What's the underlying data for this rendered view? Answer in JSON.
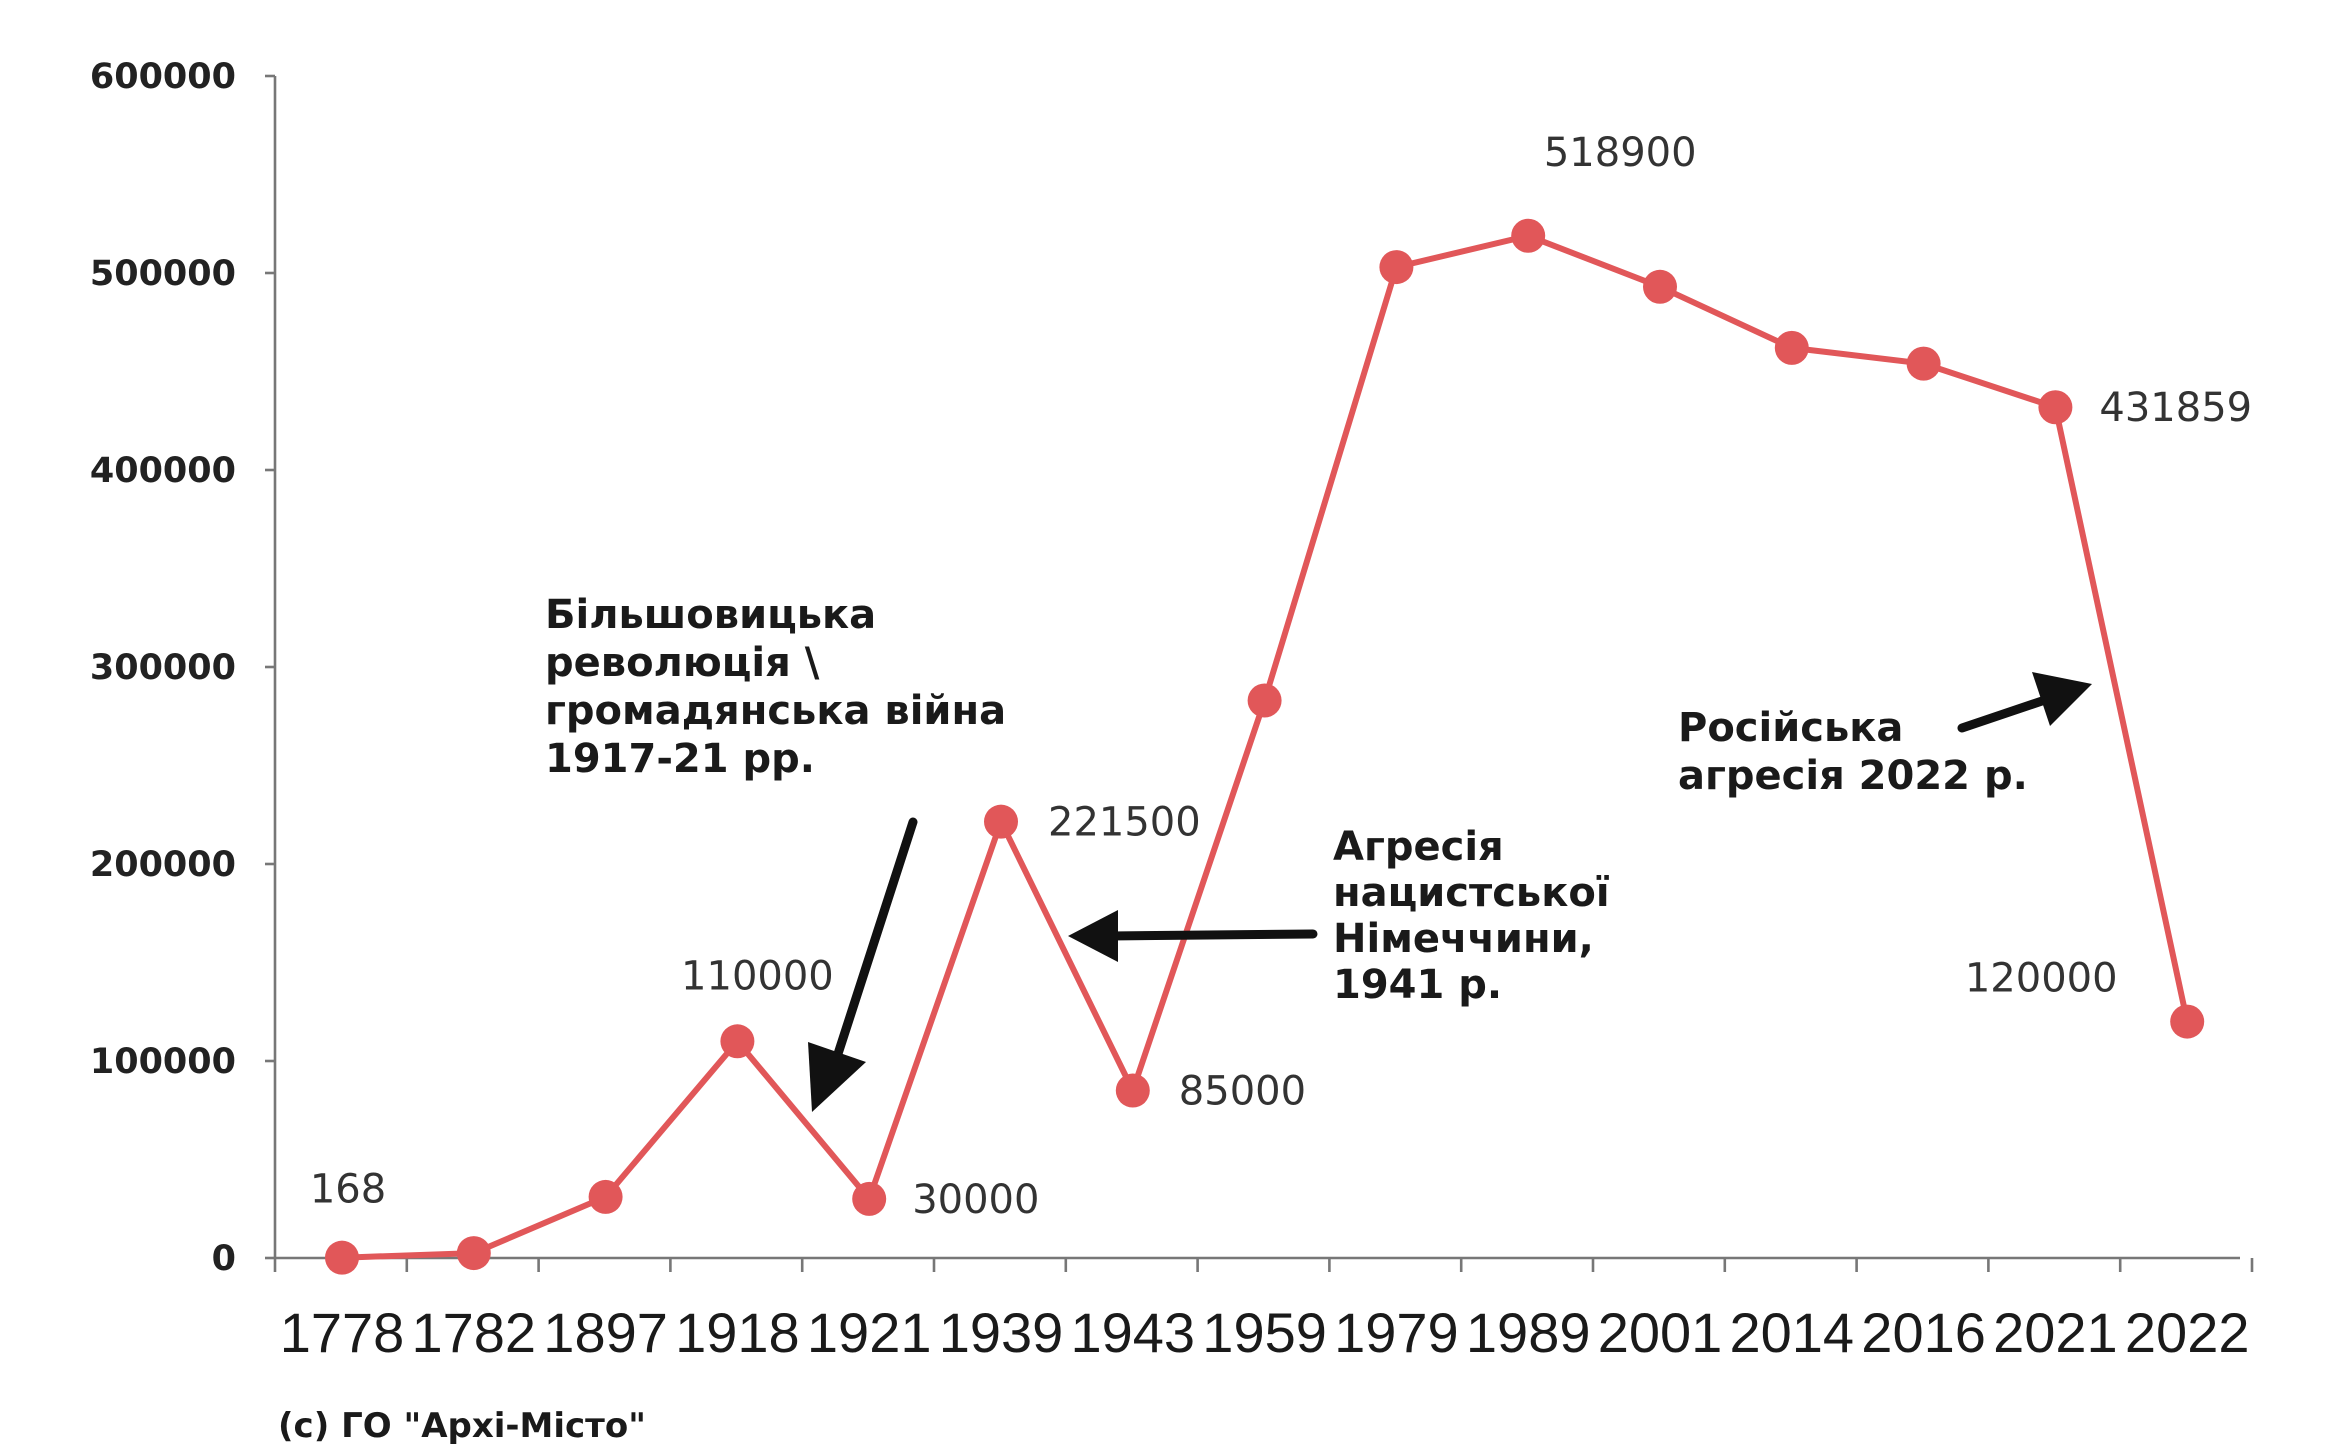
{
  "chart_data": {
    "type": "line",
    "categories": [
      "1778",
      "1782",
      "1897",
      "1918",
      "1921",
      "1939",
      "1943",
      "1959",
      "1979",
      "1989",
      "2001",
      "2014",
      "2016",
      "2021",
      "2022"
    ],
    "series": [
      {
        "values": [
          168,
          2500,
          31000,
          110000,
          30000,
          221500,
          85000,
          283000,
          503000,
          518900,
          493000,
          462000,
          454000,
          431859,
          120000
        ]
      }
    ],
    "point_labels": [
      "168",
      "",
      "",
      "110000",
      "30000",
      "221500",
      "85000",
      "",
      "",
      "518900",
      "",
      "",
      "",
      "431859",
      "120000"
    ],
    "y_ticks": [
      "0",
      "100000",
      "200000",
      "300000",
      "400000",
      "500000",
      "600000"
    ],
    "ylim": [
      0,
      600000
    ],
    "title": "",
    "xlabel": "",
    "ylabel": "",
    "grid": false,
    "legend": "none",
    "color": "#e15759",
    "annotations": [
      {
        "lines": [
          "Більшовицька",
          "революція \\",
          "громадянська війна",
          "1917-21 рр."
        ]
      },
      {
        "lines": [
          "Агресія",
          "нацистської",
          "Німеччини,",
          "1941 р."
        ]
      },
      {
        "lines": [
          "Російська",
          "агресія 2022 р."
        ]
      }
    ]
  },
  "source": "(c) ГО \"Архі-Місто\""
}
